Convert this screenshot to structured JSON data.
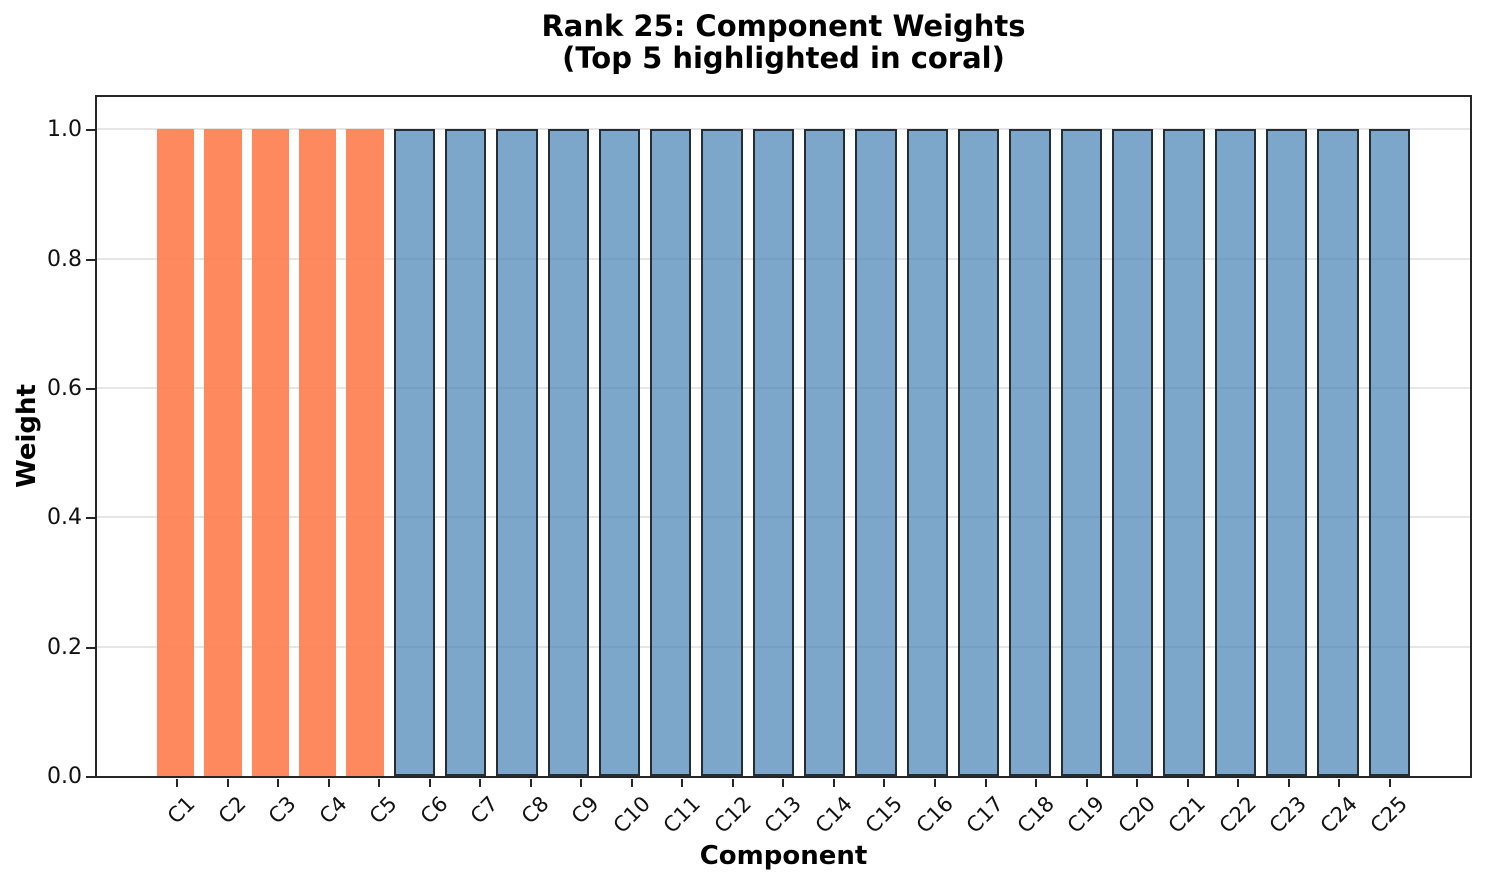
{
  "chart_data": {
    "type": "bar",
    "title": "Rank 25: Component Weights",
    "subtitle": "(Top 5 highlighted in coral)",
    "xlabel": "Component",
    "ylabel": "Weight",
    "categories": [
      "C1",
      "C2",
      "C3",
      "C4",
      "C5",
      "C6",
      "C7",
      "C8",
      "C9",
      "C10",
      "C11",
      "C12",
      "C13",
      "C14",
      "C15",
      "C16",
      "C17",
      "C18",
      "C19",
      "C20",
      "C21",
      "C22",
      "C23",
      "C24",
      "C25"
    ],
    "values": [
      1.0,
      1.0,
      1.0,
      1.0,
      1.0,
      1.0,
      1.0,
      1.0,
      1.0,
      1.0,
      1.0,
      1.0,
      1.0,
      1.0,
      1.0,
      1.0,
      1.0,
      1.0,
      1.0,
      1.0,
      1.0,
      1.0,
      1.0,
      1.0,
      1.0
    ],
    "highlighted_categories": [
      "C1",
      "C2",
      "C3",
      "C4",
      "C5"
    ],
    "highlight_count": 5,
    "ylim": [
      0,
      1.05
    ],
    "ytick_labels": [
      "0.0",
      "0.2",
      "0.4",
      "0.6",
      "0.8",
      "1.0"
    ],
    "ytick_values": [
      0.0,
      0.2,
      0.4,
      0.6,
      0.8,
      1.0
    ],
    "xtick_rotation_deg": 45,
    "legend": "none",
    "grid": {
      "axis": "y",
      "visible": true,
      "color": "#E6E6E6"
    },
    "colors": {
      "highlight_fill": "rgba(255,127,80,0.92)",
      "highlight_fill_on_white": "#FF8C61",
      "normal_fill": "rgba(70,130,180,0.70)",
      "normal_fill_on_white": "#7DA7CA",
      "normal_bar_edge": "rgba(15,15,15,0.8)",
      "spine": "#262626",
      "text": "#000000"
    }
  }
}
